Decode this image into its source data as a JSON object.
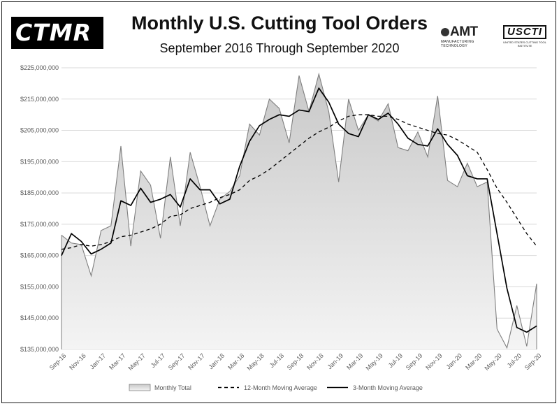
{
  "header": {
    "title": "Monthly U.S. Cutting Tool Orders",
    "subtitle": "September 2016 Through September 2020",
    "logo_left": "CTMR",
    "logo_amt": "AMT",
    "logo_amt_tagline": "MANUFACTURING TECHNOLOGY",
    "logo_usctI": "USCTI",
    "logo_usctI_tagline": "UNITED STATES CUTTING TOOL INSTITUTE"
  },
  "colors": {
    "area_fill_top": "#c8c8c8",
    "area_fill_bottom": "#f4f4f4",
    "area_stroke": "#7f7f7f",
    "moving_average": "#000000",
    "gridline": "#d9d9d9"
  },
  "chart_data": {
    "type": "area",
    "title": "Monthly U.S. Cutting Tool Orders",
    "subtitle": "September 2016 Through September 2020",
    "x": [
      "Sep-16",
      "Oct-16",
      "Nov-16",
      "Dec-16",
      "Jan-17",
      "Feb-17",
      "Mar-17",
      "Apr-17",
      "May-17",
      "Jun-17",
      "Jul-17",
      "Aug-17",
      "Sep-17",
      "Oct-17",
      "Nov-17",
      "Dec-17",
      "Jan-18",
      "Feb-18",
      "Mar-18",
      "Apr-18",
      "May-18",
      "Jun-18",
      "Jul-18",
      "Aug-18",
      "Sep-18",
      "Oct-18",
      "Nov-18",
      "Dec-18",
      "Jan-19",
      "Feb-19",
      "Mar-19",
      "Apr-19",
      "May-19",
      "Jun-19",
      "Jul-19",
      "Aug-19",
      "Sep-19",
      "Oct-19",
      "Nov-19",
      "Dec-19",
      "Jan-20",
      "Feb-20",
      "Mar-20",
      "Apr-20",
      "May-20",
      "Jun-20",
      "Jul-20",
      "Aug-20",
      "Sep-20"
    ],
    "x_tick_labels": [
      "Sep-16",
      "Nov-16",
      "Jan-17",
      "Mar-17",
      "May-17",
      "Jul-17",
      "Sep-17",
      "Nov-17",
      "Jan-18",
      "Mar-18",
      "May-18",
      "Jul-18",
      "Sep-18",
      "Nov-18",
      "Jan-19",
      "Mar-19",
      "May-19",
      "Jul-19",
      "Sep-19",
      "Nov-19",
      "Jan-20",
      "Mar-20",
      "May-20",
      "Jul-20",
      "Sep-20"
    ],
    "y_tick_labels": [
      "$135,000,000",
      "$145,000,000",
      "$155,000,000",
      "$165,000,000",
      "$175,000,000",
      "$185,000,000",
      "$195,000,000",
      "$205,000,000",
      "$215,000,000",
      "$225,000,000"
    ],
    "ylim": [
      135000000,
      225000000
    ],
    "ystep": 10000000,
    "grid": "horizontal",
    "legend_position": "bottom",
    "series": [
      {
        "name": "Monthly Total",
        "kind": "area",
        "values": [
          171500000,
          169000000,
          168500000,
          158500000,
          173000000,
          174500000,
          200000000,
          168000000,
          192000000,
          187500000,
          170500000,
          196500000,
          174500000,
          198000000,
          187000000,
          174500000,
          183000000,
          185500000,
          190500000,
          207000000,
          203500000,
          215000000,
          212000000,
          201000000,
          222500000,
          211000000,
          223000000,
          211000000,
          188500000,
          215000000,
          205000000,
          210000000,
          208000000,
          213500000,
          199500000,
          198500000,
          204500000,
          196500000,
          216000000,
          189000000,
          187000000,
          194500000,
          187000000,
          188500000,
          141500000,
          135500000,
          149000000,
          136000000,
          156000000
        ]
      },
      {
        "name": "12-Month Moving Average",
        "kind": "dashed",
        "values": [
          167000000,
          167500000,
          168500000,
          168000000,
          168500000,
          169500000,
          171000000,
          171500000,
          172500000,
          173500000,
          175000000,
          177500000,
          178000000,
          180000000,
          181000000,
          182000000,
          183500000,
          184500000,
          186000000,
          189000000,
          190500000,
          192500000,
          195000000,
          197500000,
          200000000,
          202500000,
          204500000,
          206000000,
          208000000,
          209500000,
          210000000,
          210000000,
          209500000,
          209500000,
          208500000,
          207000000,
          206000000,
          205000000,
          204000000,
          203500000,
          202000000,
          200000000,
          198000000,
          192500000,
          186500000,
          182000000,
          177000000,
          172000000,
          168000000
        ]
      },
      {
        "name": "3-Month Moving Average",
        "kind": "solid",
        "values": [
          165000000,
          172000000,
          169500000,
          165500000,
          167000000,
          169000000,
          182500000,
          181000000,
          186500000,
          182000000,
          183000000,
          184500000,
          180500000,
          189500000,
          186000000,
          186000000,
          181500000,
          183000000,
          193500000,
          201500000,
          206500000,
          208500000,
          210000000,
          209500000,
          211500000,
          211000000,
          218500000,
          214000000,
          207000000,
          204000000,
          203000000,
          210000000,
          208500000,
          210500000,
          207000000,
          202500000,
          200500000,
          200000000,
          205500000,
          200500000,
          197000000,
          190500000,
          189500000,
          189500000,
          172000000,
          154500000,
          142000000,
          140500000,
          142500000
        ]
      }
    ]
  },
  "legend": {
    "items": [
      "Monthly Total",
      "12-Month Moving Average",
      "3-Month Moving Average"
    ]
  }
}
